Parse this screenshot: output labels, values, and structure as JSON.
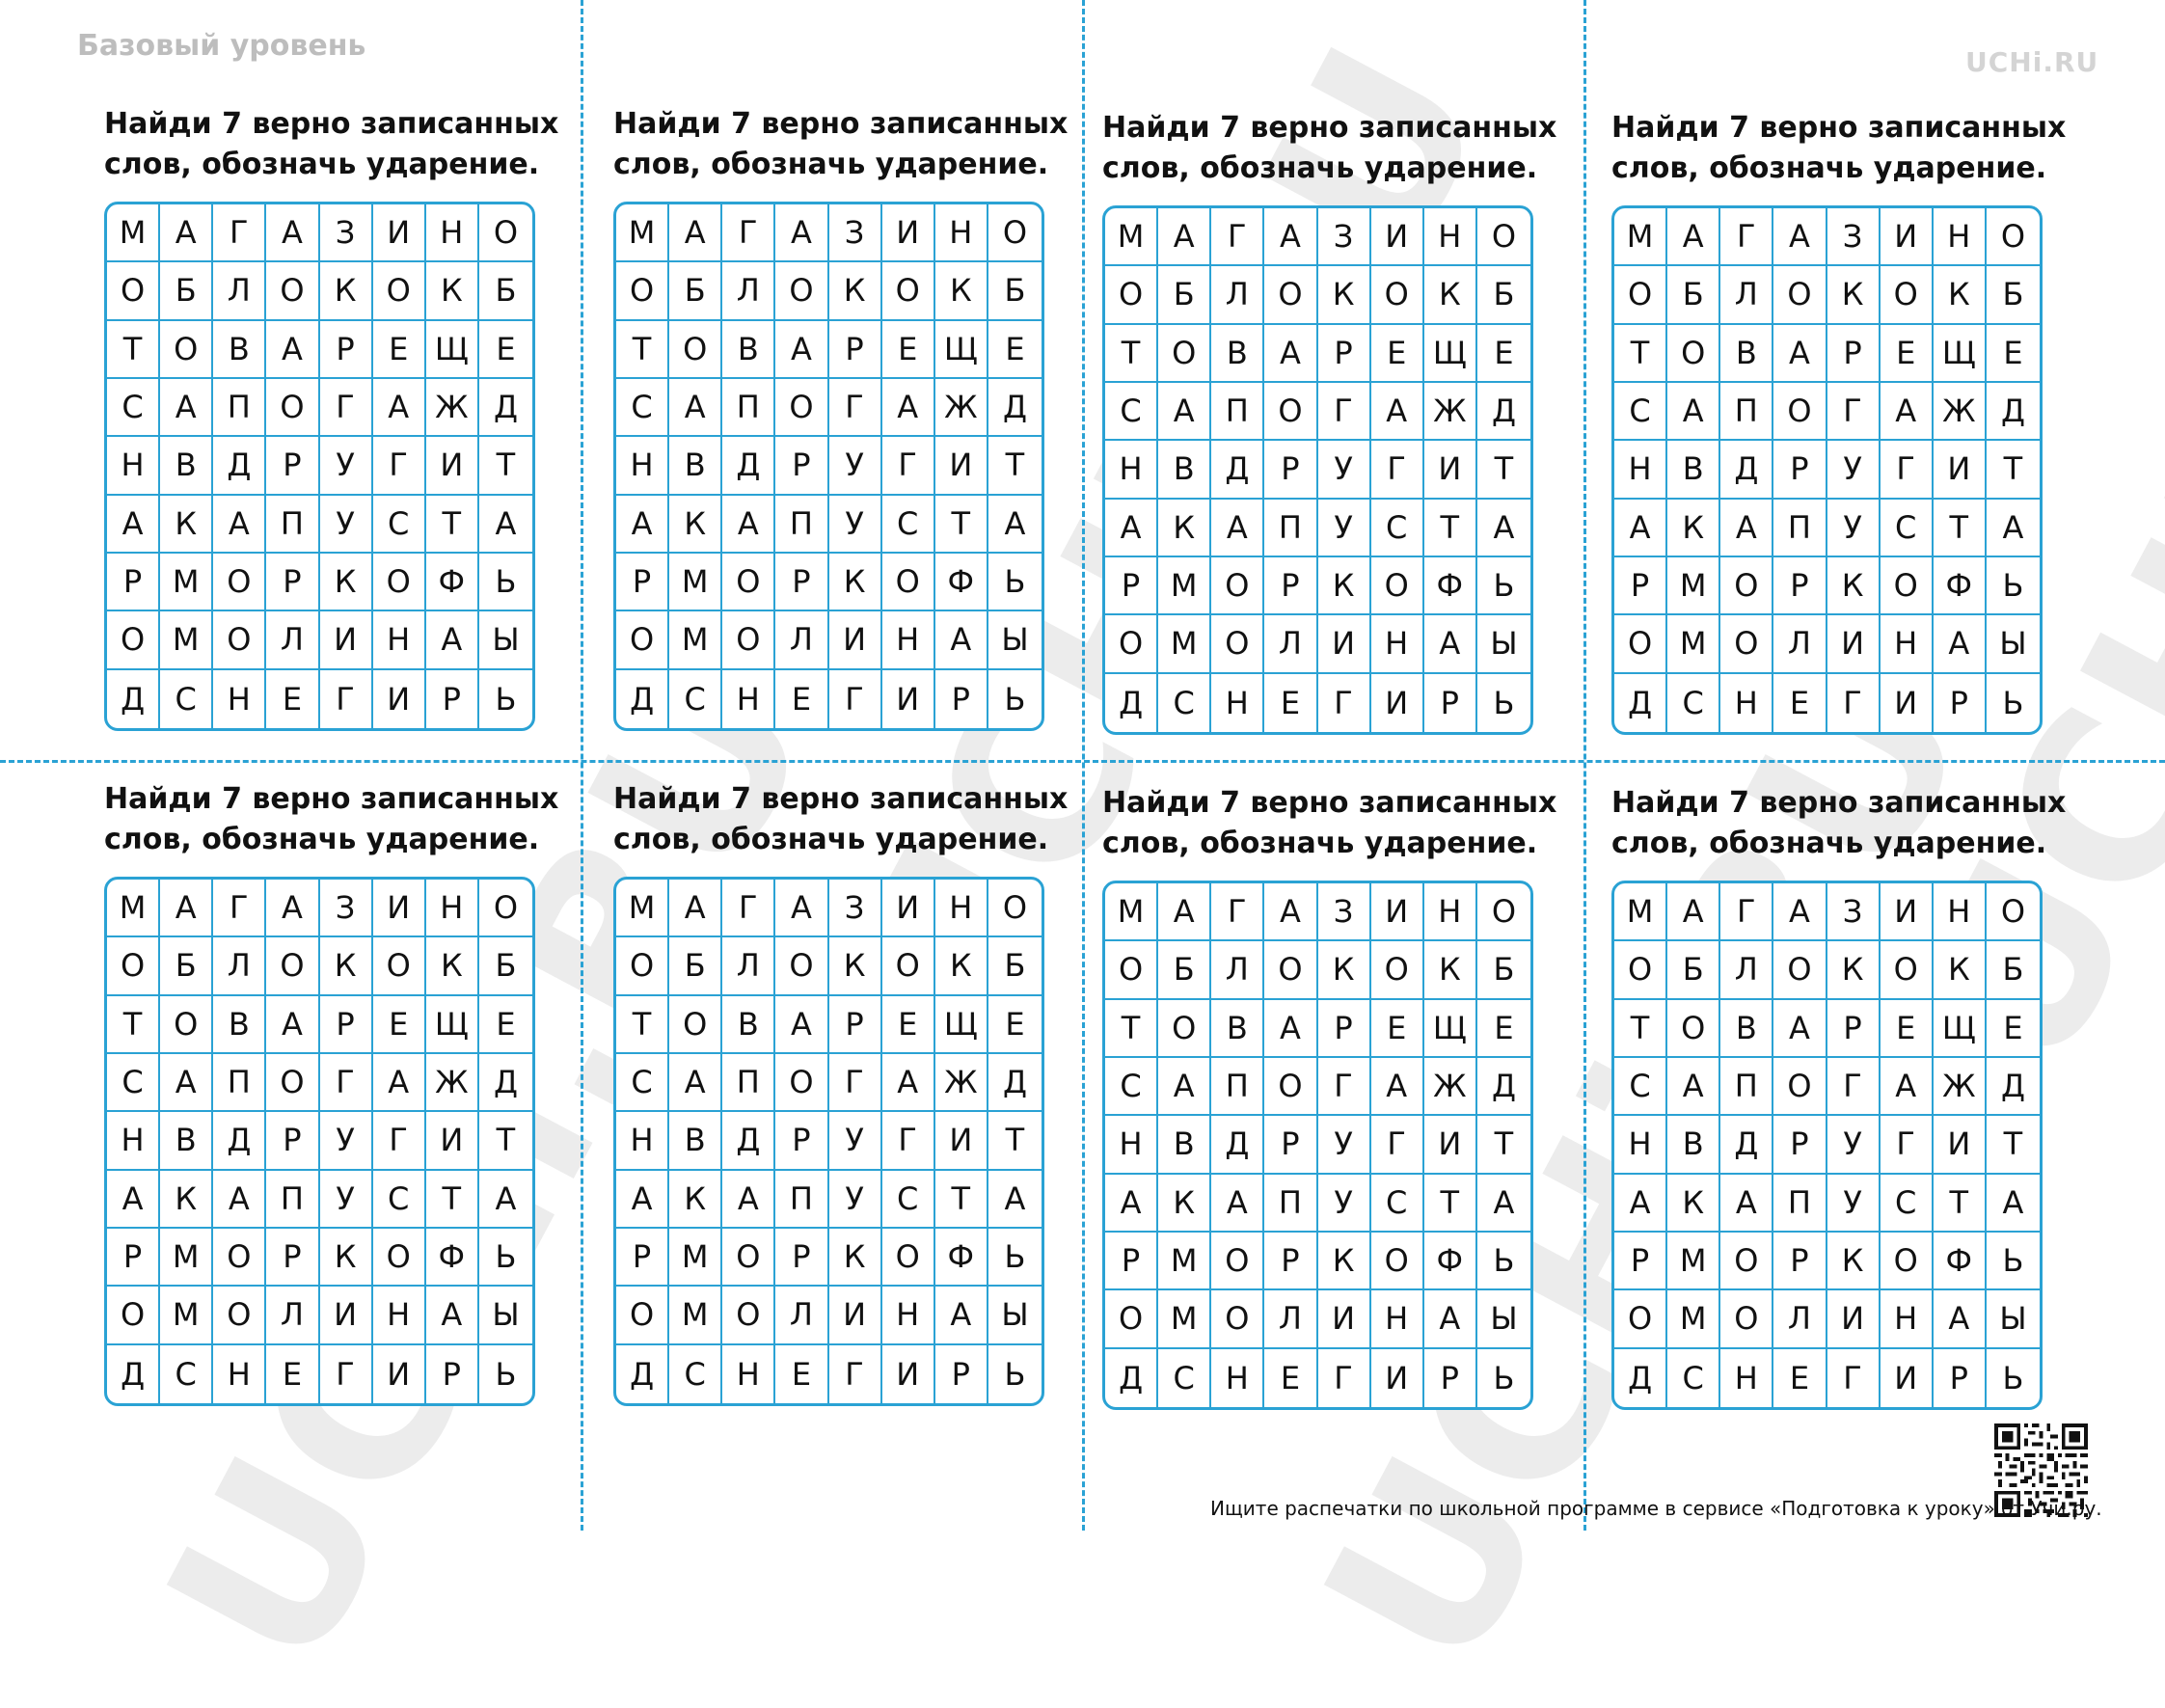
{
  "header": {
    "level": "Базовый уровень",
    "brand": "UCHi.RU"
  },
  "watermark_text": "UCHi.RU",
  "card": {
    "title_line1": "Найди 7 верно записанных",
    "title_line2": "слов, обозначь ударение.",
    "grid": [
      [
        "М",
        "А",
        "Г",
        "А",
        "З",
        "И",
        "Н",
        "О"
      ],
      [
        "О",
        "Б",
        "Л",
        "О",
        "К",
        "О",
        "К",
        "Б"
      ],
      [
        "Т",
        "О",
        "В",
        "А",
        "Р",
        "Е",
        "Щ",
        "Е"
      ],
      [
        "С",
        "А",
        "П",
        "О",
        "Г",
        "А",
        "Ж",
        "Д"
      ],
      [
        "Н",
        "В",
        "Д",
        "Р",
        "У",
        "Г",
        "И",
        "Т"
      ],
      [
        "А",
        "К",
        "А",
        "П",
        "У",
        "С",
        "Т",
        "А"
      ],
      [
        "Р",
        "М",
        "О",
        "Р",
        "К",
        "О",
        "Ф",
        "Ь"
      ],
      [
        "О",
        "М",
        "О",
        "Л",
        "И",
        "Н",
        "А",
        "Ы"
      ],
      [
        "Д",
        "С",
        "Н",
        "Е",
        "Г",
        "И",
        "Р",
        "Ь"
      ]
    ]
  },
  "footer": {
    "text": "Ищите распечатки по школьной программе в сервисе «Подготовка к уроку» от Учи.ру."
  },
  "qr": {
    "icon": "qr-code-icon"
  }
}
